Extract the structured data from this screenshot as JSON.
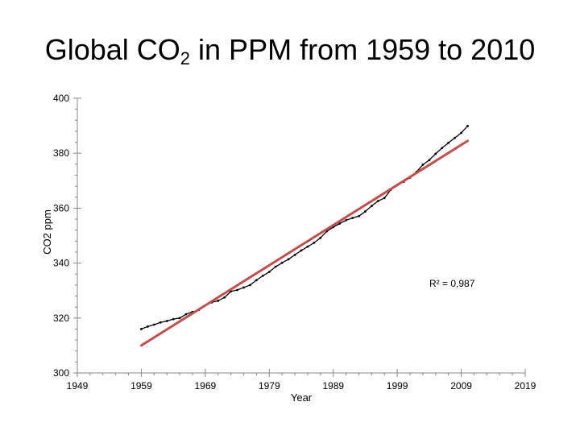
{
  "chart_data": {
    "type": "line",
    "title_main": "Global CO",
    "title_sub": "2",
    "title_rest": " in PPM from 1959 to 2010",
    "xlabel": "Year",
    "ylabel": "CO2 ppm",
    "xlim": [
      1949,
      2019
    ],
    "ylim": [
      300,
      400
    ],
    "x_ticks": [
      1949,
      1959,
      1969,
      1979,
      1989,
      1999,
      2009,
      2019
    ],
    "y_ticks": [
      300,
      320,
      340,
      360,
      380,
      400
    ],
    "annotation": "R² = 0,987",
    "grid": false,
    "series": [
      {
        "kind": "data",
        "color": "#000000",
        "x": [
          1959,
          1960,
          1961,
          1962,
          1963,
          1964,
          1965,
          1966,
          1967,
          1968,
          1969,
          1970,
          1971,
          1972,
          1973,
          1974,
          1975,
          1976,
          1977,
          1978,
          1979,
          1980,
          1981,
          1982,
          1983,
          1984,
          1985,
          1986,
          1987,
          1988,
          1989,
          1990,
          1991,
          1992,
          1993,
          1994,
          1995,
          1996,
          1997,
          1998,
          1999,
          2000,
          2001,
          2002,
          2003,
          2004,
          2005,
          2006,
          2007,
          2008,
          2009,
          2010
        ],
        "y": [
          316.0,
          316.9,
          317.6,
          318.4,
          318.9,
          319.6,
          320.0,
          321.4,
          322.2,
          323.0,
          324.6,
          325.7,
          326.3,
          327.5,
          329.7,
          330.2,
          331.1,
          332.0,
          333.8,
          335.4,
          336.8,
          338.7,
          340.1,
          341.4,
          343.0,
          344.6,
          346.0,
          347.4,
          349.2,
          351.6,
          353.1,
          354.4,
          355.6,
          356.4,
          357.1,
          358.8,
          360.8,
          362.6,
          363.7,
          366.7,
          368.4,
          369.6,
          371.1,
          373.2,
          375.8,
          377.5,
          379.8,
          381.9,
          383.8,
          385.6,
          387.4,
          389.9
        ]
      },
      {
        "kind": "trend",
        "color": "#c0504d",
        "x": [
          1959,
          2010
        ],
        "y": [
          310.0,
          384.5
        ]
      }
    ]
  }
}
